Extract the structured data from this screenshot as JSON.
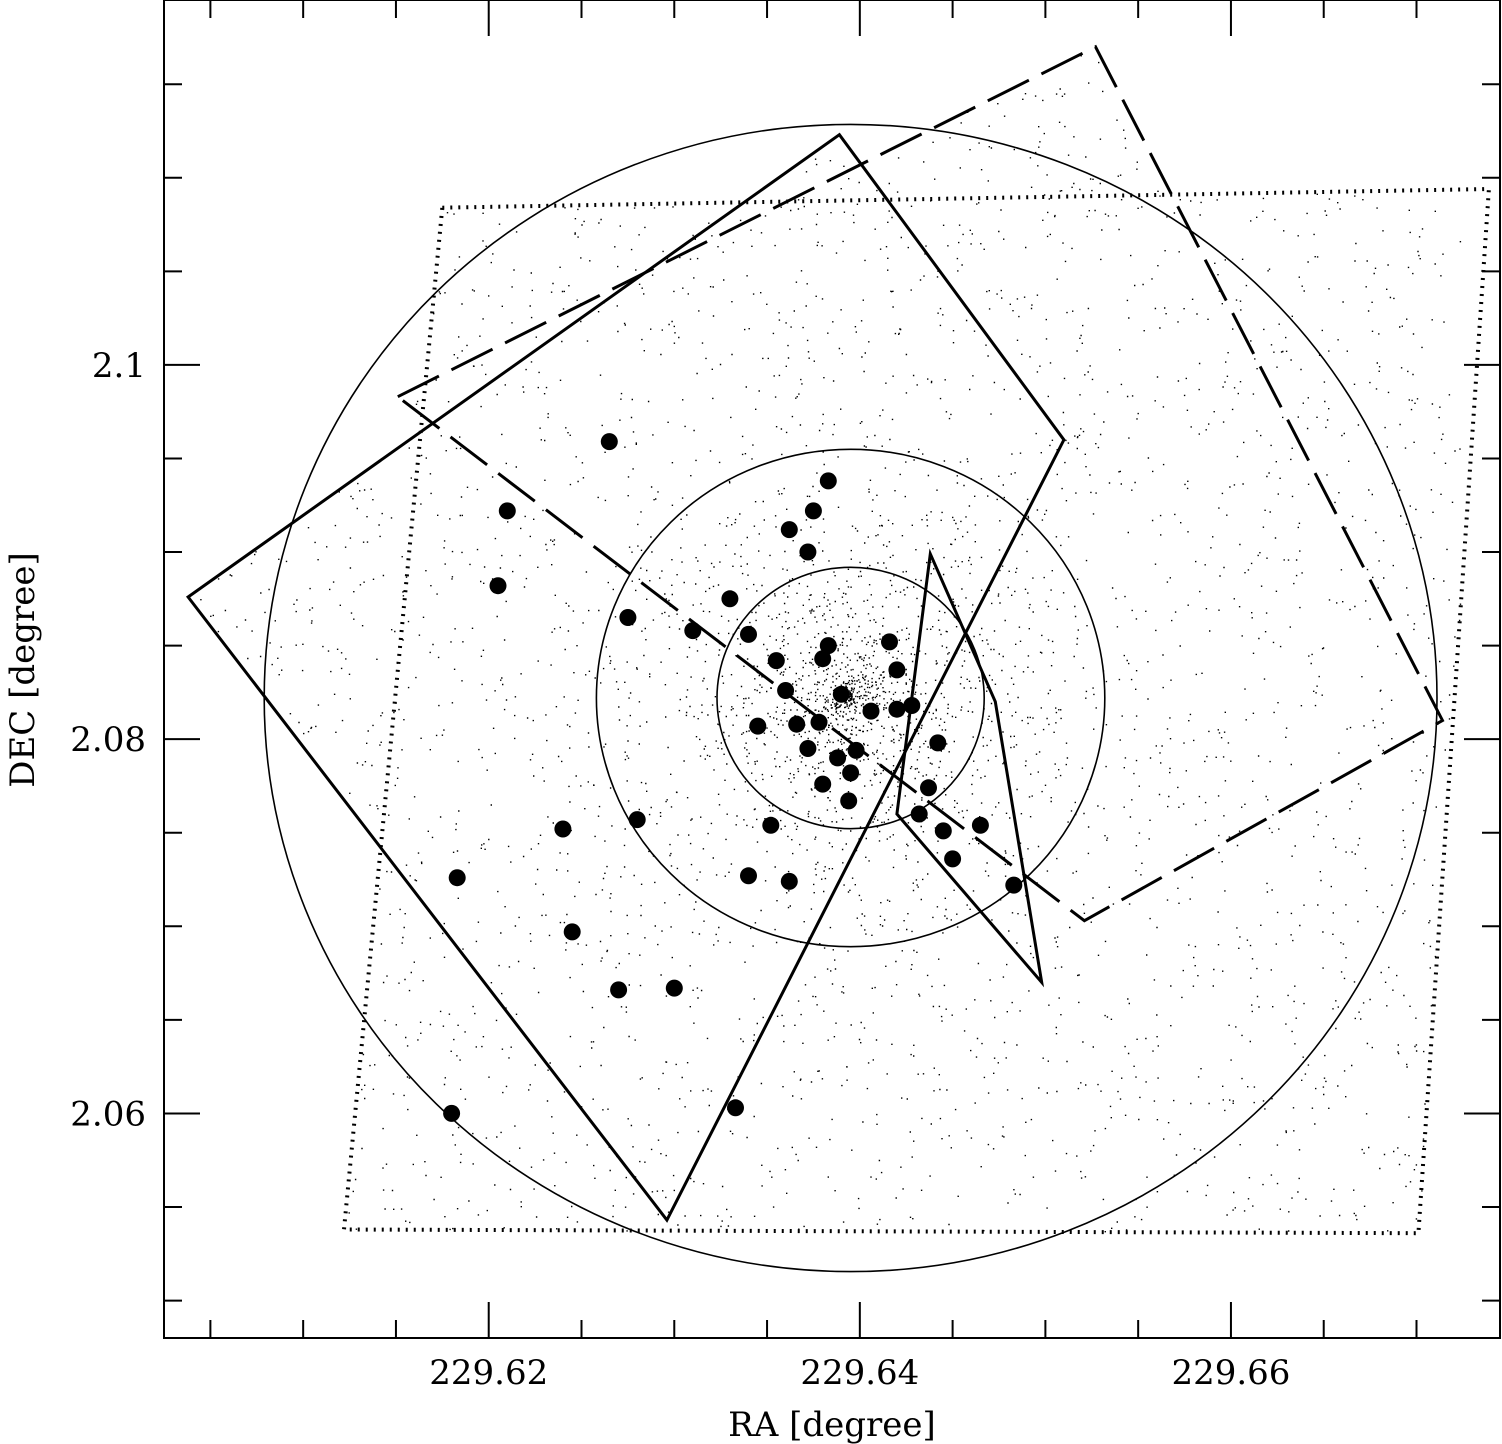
{
  "chart_data": {
    "type": "scatter",
    "title": "",
    "xlabel": "RA [degree]",
    "ylabel": "DEC [degree]",
    "xlim": [
      229.6025,
      229.6745
    ],
    "ylim": [
      2.048,
      2.1195
    ],
    "x_ticks": [
      229.62,
      229.64,
      229.66
    ],
    "x_tick_labels": [
      "229.62",
      "229.64",
      "229.66"
    ],
    "y_ticks": [
      2.06,
      2.08,
      2.1
    ],
    "y_tick_labels": [
      "2.06",
      "2.08",
      "2.1"
    ],
    "x_minor_step": 0.005,
    "y_minor_step": 0.005,
    "grid": false,
    "cluster_center": [
      229.6395,
      2.0822
    ],
    "circle_radii": [
      0.0072,
      0.0137,
      0.0316
    ],
    "fields": [
      {
        "style": "dotted",
        "corners": [
          [
            229.6175,
            2.1084
          ],
          [
            229.6739,
            2.1094
          ],
          [
            229.6701,
            2.0536
          ],
          [
            229.6122,
            2.0538
          ]
        ]
      },
      {
        "style": "dashed",
        "corners": [
          [
            229.6151,
            2.0983
          ],
          [
            229.6527,
            2.117
          ],
          [
            229.6714,
            2.081
          ],
          [
            229.6521,
            2.0703
          ]
        ]
      },
      {
        "style": "solid",
        "corners": [
          [
            229.6038,
            2.0876
          ],
          [
            229.6389,
            2.1123
          ],
          [
            229.651,
            2.096
          ],
          [
            229.6296,
            2.0543
          ]
        ]
      },
      {
        "style": "solid",
        "corners": [
          [
            229.642,
            2.076
          ],
          [
            229.6498,
            2.067
          ],
          [
            229.6473,
            2.082
          ],
          [
            229.6438,
            2.0899
          ]
        ]
      }
    ],
    "members": {
      "x": [
        229.6265,
        229.621,
        229.6205,
        229.6275,
        229.631,
        229.633,
        229.634,
        229.6355,
        229.6345,
        229.636,
        229.6366,
        229.638,
        229.6383,
        229.6378,
        229.6388,
        229.6372,
        229.638,
        229.6394,
        229.6398,
        229.6406,
        229.6416,
        229.642,
        229.6428,
        229.642,
        229.6442,
        229.6437,
        229.6432,
        229.6445,
        229.645,
        229.6465,
        229.6483,
        229.6375,
        229.6383,
        229.639,
        229.6372,
        229.6362,
        229.6395,
        229.6352,
        229.634,
        229.6362,
        229.628,
        229.624,
        229.6183,
        229.6245,
        229.627,
        229.63,
        229.618,
        229.6333
      ],
      "y": [
        2.0959,
        2.0922,
        2.0882,
        2.0865,
        2.0858,
        2.0875,
        2.0856,
        2.0842,
        2.0807,
        2.0826,
        2.0808,
        2.0843,
        2.085,
        2.0809,
        2.079,
        2.0795,
        2.0776,
        2.0767,
        2.0794,
        2.0815,
        2.0852,
        2.0837,
        2.0818,
        2.0816,
        2.0798,
        2.0774,
        2.076,
        2.0751,
        2.0736,
        2.0754,
        2.0722,
        2.0922,
        2.0938,
        2.0824,
        2.09,
        2.0912,
        2.0782,
        2.0754,
        2.0727,
        2.0724,
        2.0757,
        2.0752,
        2.0726,
        2.0697,
        2.0666,
        2.0667,
        2.06,
        2.0603
      ]
    },
    "background_points": {
      "note_free": true,
      "total": 26000
    }
  }
}
